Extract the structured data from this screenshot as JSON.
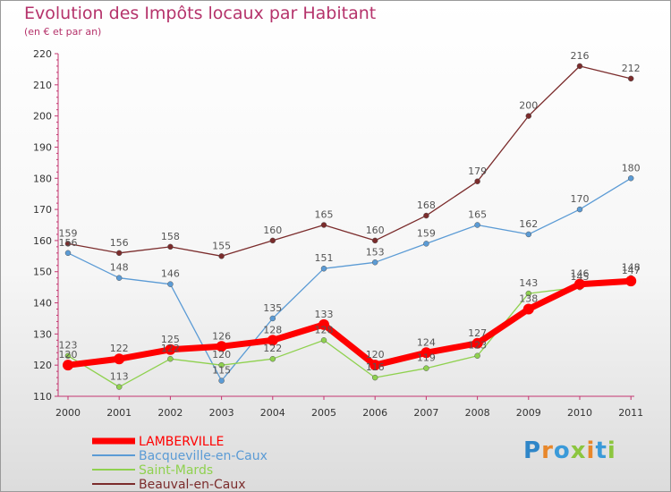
{
  "title": "Evolution des Impôts locaux par Habitant",
  "subtitle": "(en € et par an)",
  "logo": "Proxiti",
  "chart_data": {
    "type": "line",
    "title": "Evolution des Impôts locaux par Habitant",
    "subtitle": "(en € et par an)",
    "xlabel": "",
    "ylabel": "",
    "x": [
      "2000",
      "2001",
      "2002",
      "2003",
      "2004",
      "2005",
      "2006",
      "2007",
      "2008",
      "2009",
      "2010",
      "2011"
    ],
    "ylim": [
      110,
      220
    ],
    "yticks": [
      110,
      120,
      130,
      140,
      150,
      160,
      170,
      180,
      190,
      200,
      210,
      220
    ],
    "grid": false,
    "legend": "bottom-left",
    "series": [
      {
        "name": "LAMBERVILLE",
        "color": "#ff0000",
        "values": [
          120,
          122,
          125,
          126,
          128,
          133,
          120,
          124,
          127,
          138,
          146,
          147
        ]
      },
      {
        "name": "Bacqueville-en-Caux",
        "color": "#5b9bd5",
        "values": [
          156,
          148,
          146,
          115,
          135,
          151,
          153,
          159,
          165,
          162,
          170,
          180
        ]
      },
      {
        "name": "Saint-Mards",
        "color": "#8fd14f",
        "values": [
          123,
          113,
          122,
          120,
          122,
          128,
          116,
          119,
          123,
          143,
          145,
          148
        ]
      },
      {
        "name": "Beauval-en-Caux",
        "color": "#7b2c2c",
        "values": [
          159,
          156,
          158,
          155,
          160,
          165,
          160,
          168,
          179,
          200,
          216,
          212
        ]
      }
    ]
  }
}
